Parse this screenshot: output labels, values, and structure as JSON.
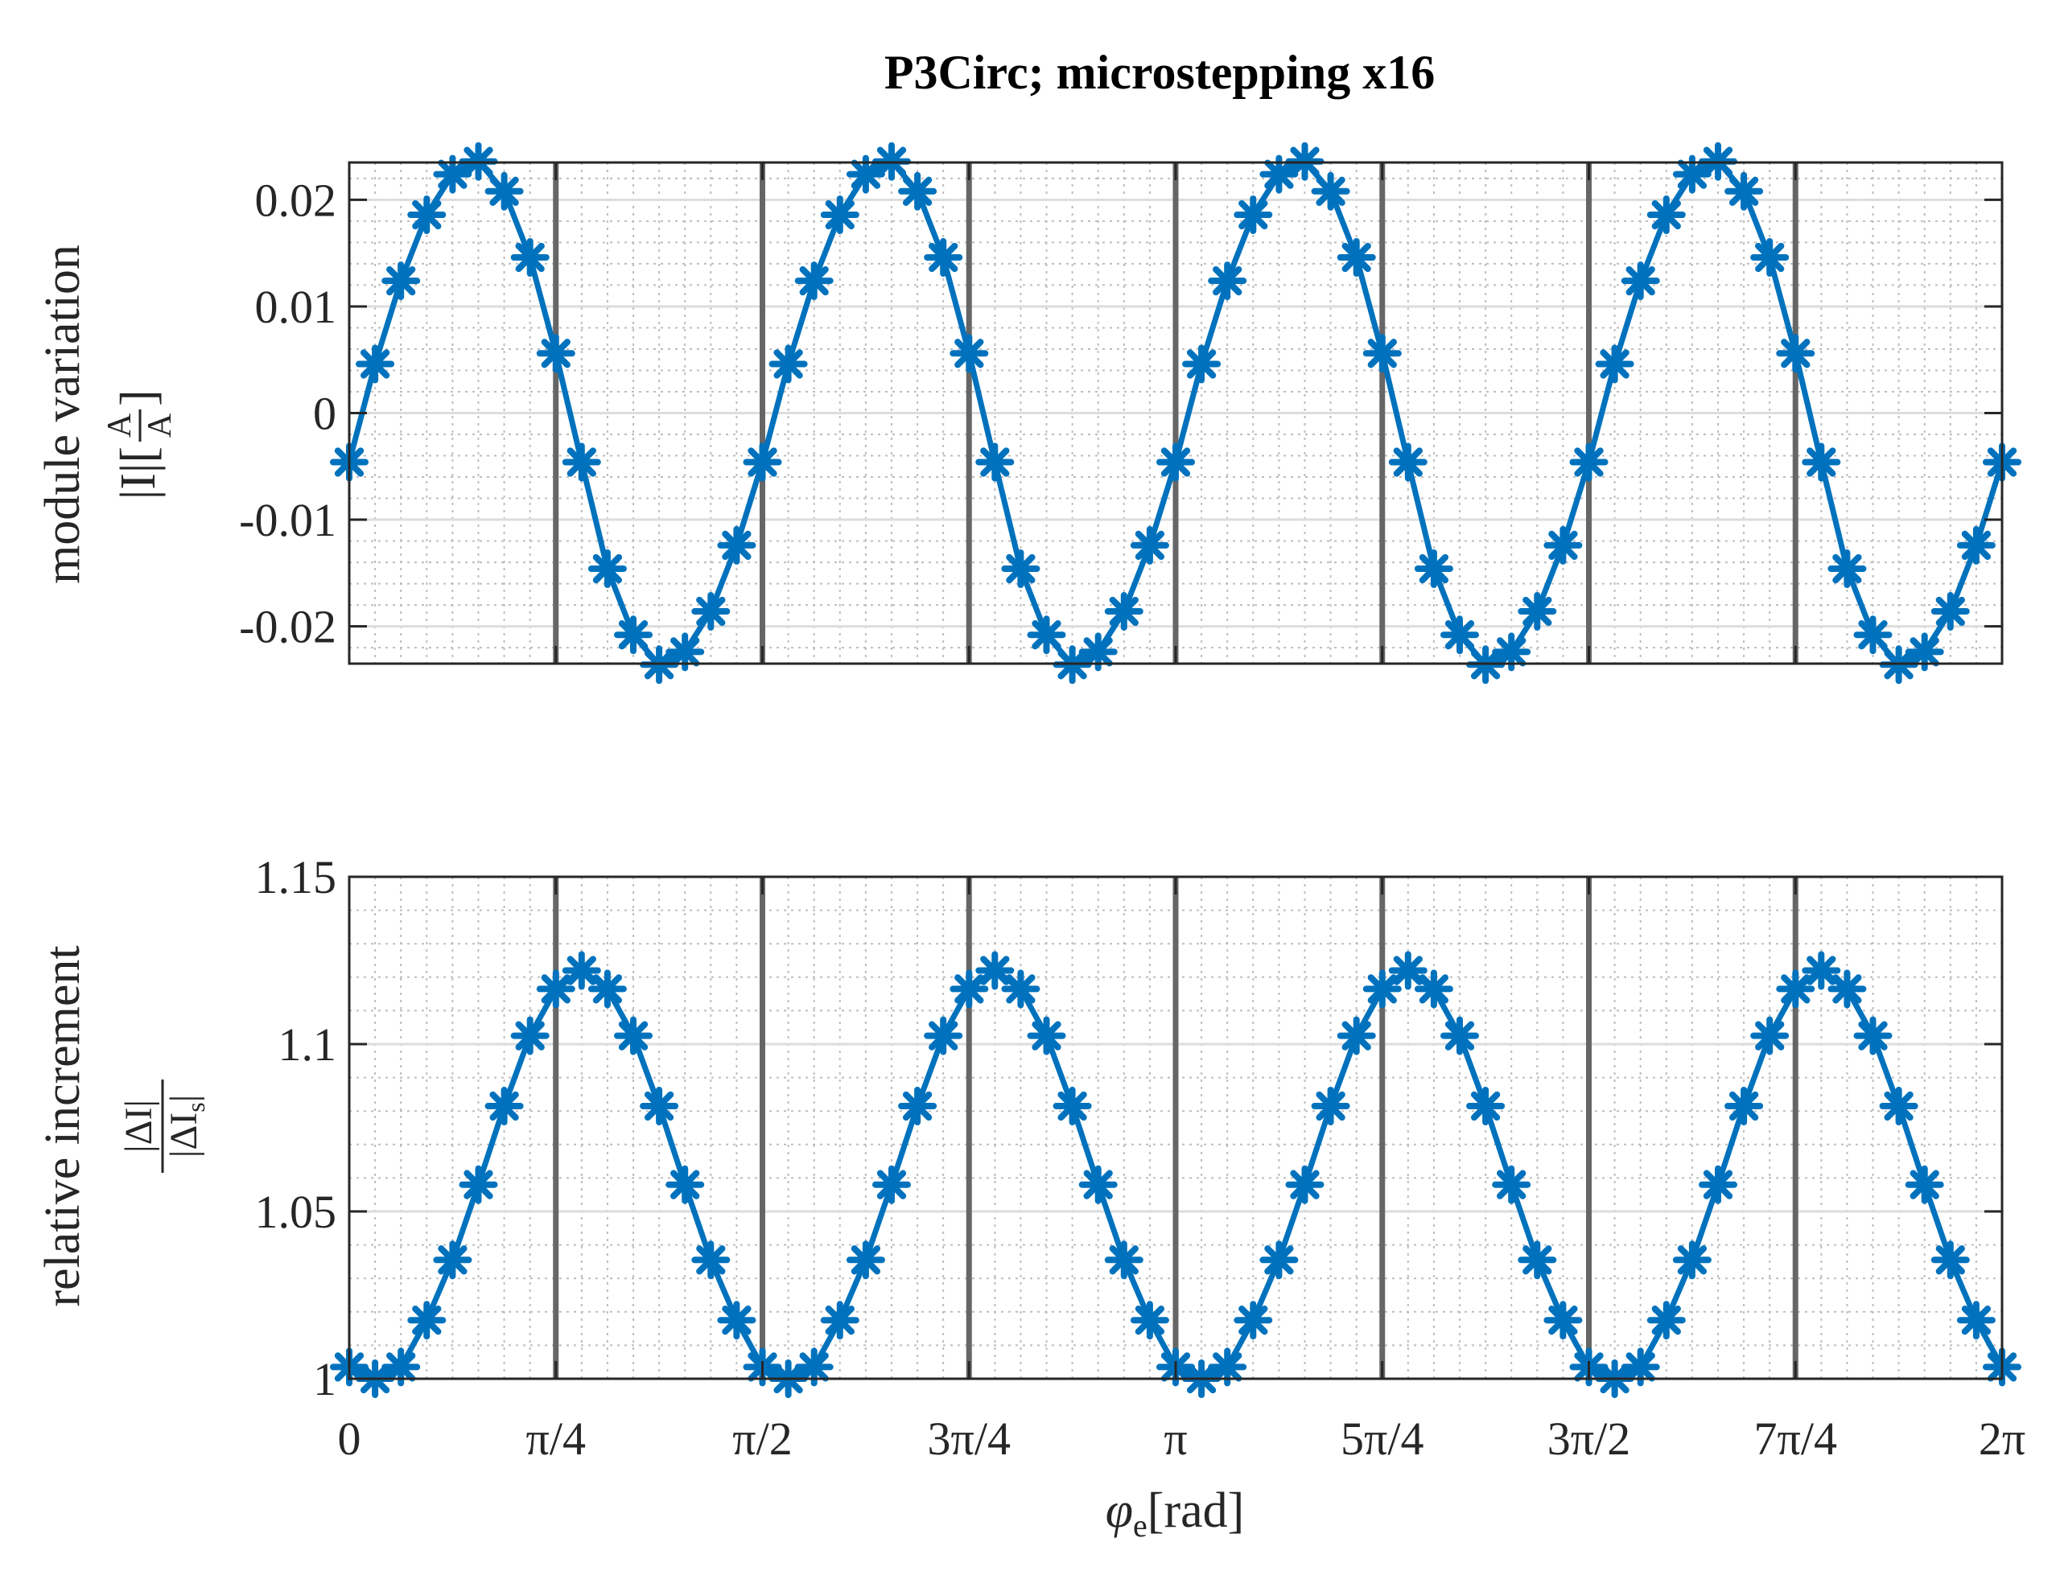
{
  "chart_data": {
    "type": "line",
    "title": "P3Circ; microstepping x16",
    "colors": {
      "series": "#0072BD",
      "grid_major": "#dddddd",
      "grid_minor": "#bdbdbd",
      "vertical_marker": "#666666",
      "axis": "#262626"
    },
    "x_tick_labels": [
      "0",
      "π/4",
      "π/2",
      "3π/4",
      "π",
      "5π/4",
      "3π/2",
      "7π/4",
      "2π"
    ],
    "xlabel": {
      "main": "φ",
      "sub": "e",
      "unit": "[rad]"
    },
    "vertical_markers_rad": [
      0.7854,
      1.5708,
      2.3562,
      3.1416,
      3.927,
      4.7124,
      5.4978
    ],
    "x_points_note": "65 samples, step 2π/64 from 0 to 2π",
    "subplots": [
      {
        "name": "module-variation",
        "ylabel_line1": "module variation",
        "ylabel_line2": {
          "left": "|I|[",
          "num": "A",
          "den": "A",
          "right": "]"
        },
        "ylim": [
          -0.0235,
          0.0235
        ],
        "yticks": [
          -0.02,
          -0.01,
          0,
          0.01,
          0.02
        ],
        "ytick_labels": [
          "-0.02",
          "-0.01",
          "0",
          "0.01",
          "0.02"
        ],
        "series": [
          {
            "name": "module-variation-series",
            "x_step_rad": 0.0981748,
            "values": [
              -0.0046,
              0.0046,
              0.0124,
              0.0186,
              0.0224,
              0.0236,
              0.0208,
              0.0146,
              0.0056,
              -0.0046,
              -0.0146,
              -0.0208,
              -0.0236,
              -0.0224,
              -0.0186,
              -0.0124,
              -0.0046,
              0.0046,
              0.0124,
              0.0186,
              0.0224,
              0.0236,
              0.0208,
              0.0146,
              0.0056,
              -0.0046,
              -0.0146,
              -0.0208,
              -0.0236,
              -0.0224,
              -0.0186,
              -0.0124,
              -0.0046,
              0.0046,
              0.0124,
              0.0186,
              0.0224,
              0.0236,
              0.0208,
              0.0146,
              0.0056,
              -0.0046,
              -0.0146,
              -0.0208,
              -0.0236,
              -0.0224,
              -0.0186,
              -0.0124,
              -0.0046,
              0.0046,
              0.0124,
              0.0186,
              0.0224,
              0.0236,
              0.0208,
              0.0146,
              0.0056,
              -0.0046,
              -0.0146,
              -0.0208,
              -0.0236,
              -0.0224,
              -0.0186,
              -0.0124,
              -0.0046
            ]
          }
        ]
      },
      {
        "name": "relative-increment",
        "ylabel_line1": "relative increment",
        "ylabel_line2": {
          "num": "|ΔI|",
          "den": "|ΔI",
          "den_sub": "s",
          "den_end": "|"
        },
        "ylim": [
          1.0,
          1.15
        ],
        "yticks": [
          1.0,
          1.05,
          1.1,
          1.15
        ],
        "ytick_labels": [
          "1",
          "1.05",
          "1.1",
          "1.15"
        ],
        "series": [
          {
            "name": "relative-increment-series",
            "x_step_rad": 0.0981748,
            "values": [
              1.0035,
              1.0,
              1.0035,
              1.0175,
              1.0355,
              1.058,
              1.0815,
              1.1025,
              1.1165,
              1.122,
              1.1165,
              1.1025,
              1.0815,
              1.058,
              1.0355,
              1.0175,
              1.0035,
              1.0,
              1.0035,
              1.0175,
              1.0355,
              1.058,
              1.0815,
              1.1025,
              1.1165,
              1.122,
              1.1165,
              1.1025,
              1.0815,
              1.058,
              1.0355,
              1.0175,
              1.0035,
              1.0,
              1.0035,
              1.0175,
              1.0355,
              1.058,
              1.0815,
              1.1025,
              1.1165,
              1.122,
              1.1165,
              1.1025,
              1.0815,
              1.058,
              1.0355,
              1.0175,
              1.0035,
              1.0,
              1.0035,
              1.0175,
              1.0355,
              1.058,
              1.0815,
              1.1025,
              1.1165,
              1.122,
              1.1165,
              1.1025,
              1.0815,
              1.058,
              1.0355,
              1.0175,
              1.0035
            ]
          }
        ]
      }
    ]
  }
}
